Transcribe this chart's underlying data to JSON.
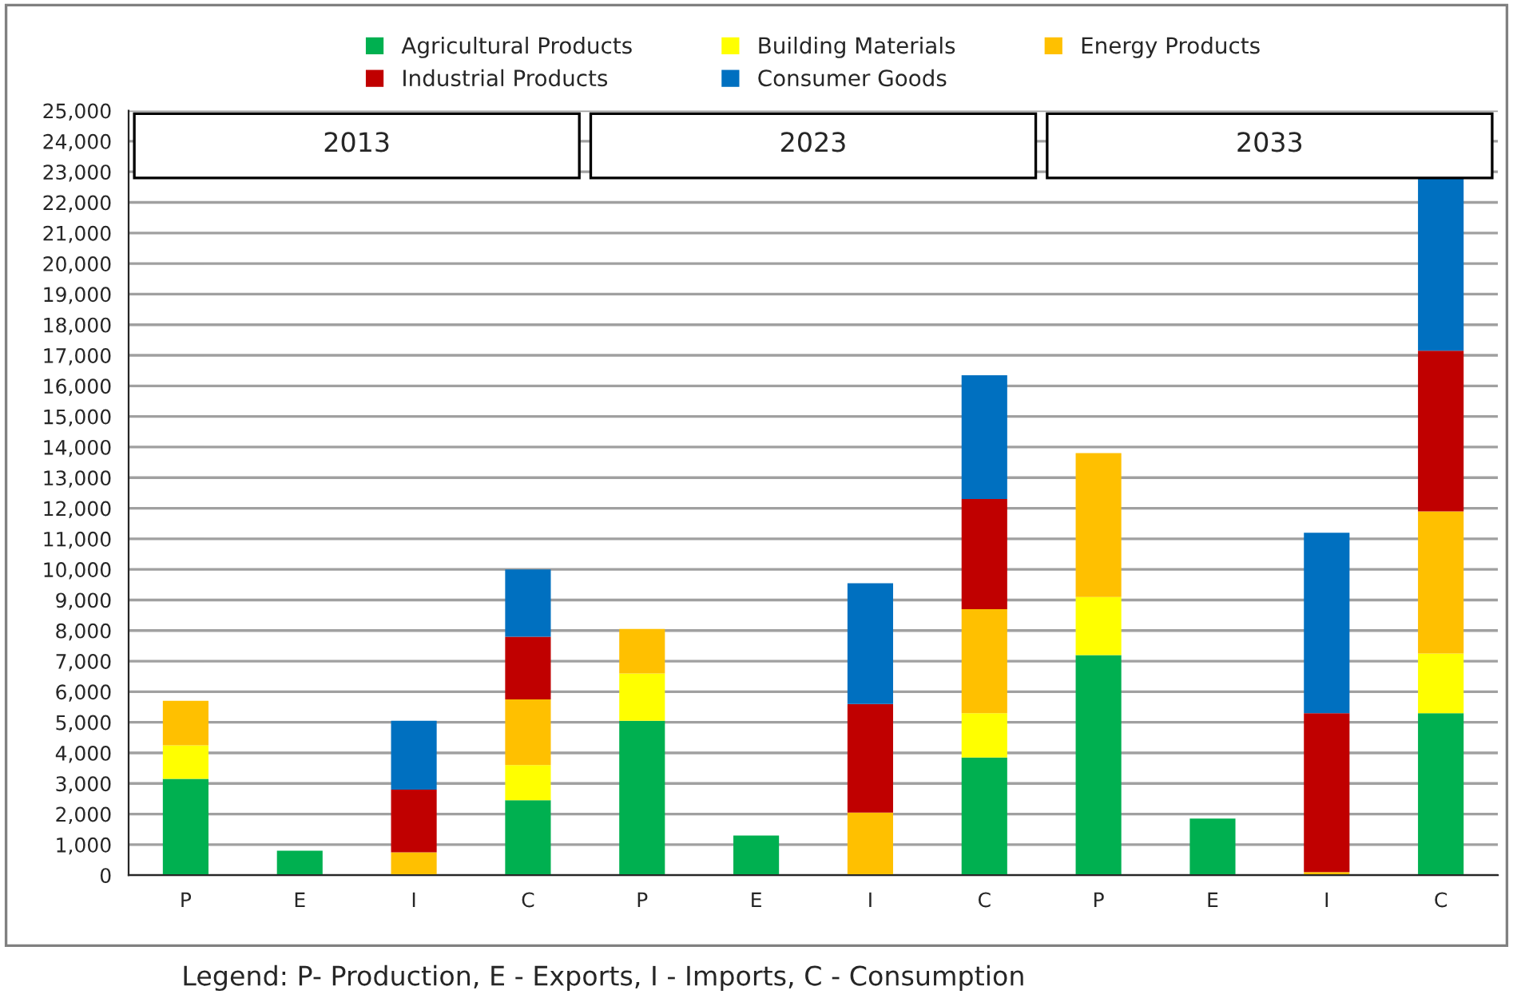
{
  "chart_data": {
    "type": "bar",
    "stacked": true,
    "categories": [
      "P",
      "E",
      "I",
      "C",
      "P",
      "E",
      "I",
      "C",
      "P",
      "E",
      "I",
      "C"
    ],
    "series": [
      {
        "name": "Agricultural Products",
        "color": "#00b050",
        "values": [
          3150,
          800,
          null,
          2450,
          5050,
          1300,
          null,
          3850,
          7200,
          1850,
          null,
          5300
        ]
      },
      {
        "name": "Building Materials",
        "color": "#ffff00",
        "values": [
          1100,
          null,
          null,
          1150,
          1550,
          null,
          null,
          1450,
          1900,
          null,
          null,
          1950
        ]
      },
      {
        "name": "Energy Products",
        "color": "#ffc000",
        "values": [
          1450,
          null,
          750,
          2150,
          1450,
          null,
          2050,
          3400,
          4700,
          null,
          100,
          4650
        ]
      },
      {
        "name": "Industrial Products",
        "color": "#c00000",
        "values": [
          null,
          null,
          2050,
          2050,
          null,
          null,
          3550,
          3600,
          null,
          null,
          5200,
          5250
        ]
      },
      {
        "name": "Consumer Goods",
        "color": "#0070c0",
        "values": [
          null,
          null,
          2250,
          2200,
          null,
          null,
          3950,
          4050,
          null,
          null,
          5900,
          5700
        ]
      }
    ],
    "ylim": [
      0,
      25000
    ],
    "yticks": [
      {
        "value": 0,
        "label": "0"
      },
      {
        "value": 1000,
        "label": "1,000"
      },
      {
        "value": 2000,
        "label": "2,000"
      },
      {
        "value": 3000,
        "label": "3,000"
      },
      {
        "value": 4000,
        "label": "4,000"
      },
      {
        "value": 5000,
        "label": "5,000"
      },
      {
        "value": 6000,
        "label": "6,000"
      },
      {
        "value": 7000,
        "label": "7,000"
      },
      {
        "value": 8000,
        "label": "8,000"
      },
      {
        "value": 9000,
        "label": "9,000"
      },
      {
        "value": 10000,
        "label": "10,000"
      },
      {
        "value": 11000,
        "label": "11,000"
      },
      {
        "value": 12000,
        "label": "12,000"
      },
      {
        "value": 13000,
        "label": "13,000"
      },
      {
        "value": 14000,
        "label": "14,000"
      },
      {
        "value": 15000,
        "label": "15,000"
      },
      {
        "value": 16000,
        "label": "16,000"
      },
      {
        "value": 17000,
        "label": "17,000"
      },
      {
        "value": 18000,
        "label": "18,000"
      },
      {
        "value": 19000,
        "label": "19,000"
      },
      {
        "value": 20000,
        "label": "20,000"
      },
      {
        "value": 21000,
        "label": "21,000"
      },
      {
        "value": 22000,
        "label": "22,000"
      },
      {
        "value": 23000,
        "label": "23,000"
      },
      {
        "value": 24000,
        "label": "24,000"
      },
      {
        "value": 25000,
        "label": "25,000"
      }
    ],
    "annotations": [
      "2013",
      "2023",
      "2033",
      "Legend: P- Production, E - Exports, I - Imports, C - Consumption"
    ],
    "grid": "y",
    "legend": "top"
  }
}
